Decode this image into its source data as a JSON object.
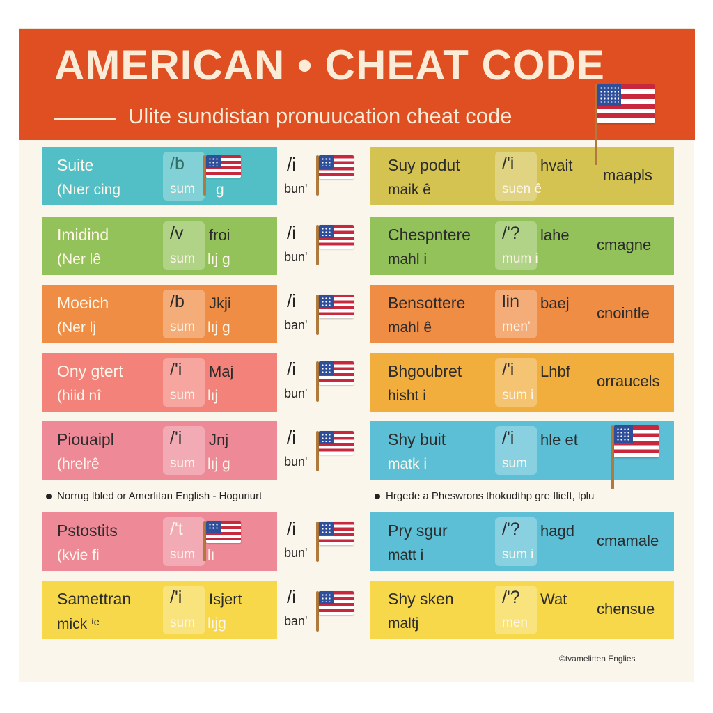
{
  "header": {
    "title": "AMERICAN • CHEAT CODE",
    "subtitle": "Ulite sundistan pronuucation cheat code"
  },
  "colors": {
    "banner": "#df4f22",
    "sheet": "#fbf6ec",
    "flag_red": "#c8283c",
    "flag_blue": "#2f4f9a"
  },
  "icons": [
    "us-flag-icon"
  ],
  "left_cards": [
    {
      "name": "Suite",
      "sub": "(Nıer cing",
      "chip_top": "/b",
      "chip_bottom": "sum",
      "word": "",
      "tail": "g",
      "color": "teal",
      "mid_ipa": "/i",
      "mid_word": "bun'"
    },
    {
      "name": "Imidind",
      "sub": "(Ner lê",
      "chip_top": "/v",
      "chip_bottom": "sum",
      "word": "froi",
      "tail": "lıj g",
      "color": "green",
      "mid_ipa": "/i",
      "mid_word": "bun'"
    },
    {
      "name": "Moeich",
      "sub": "(Ner lj",
      "chip_top": "/b",
      "chip_bottom": "sum",
      "word": "Jkji",
      "tail": "lıj g",
      "color": "orange",
      "mid_ipa": "/i",
      "mid_word": "ban'"
    },
    {
      "name": "Ony gtert",
      "sub": "(hiid nî",
      "chip_top": "/'i",
      "chip_bottom": "sum",
      "word": "Maj",
      "tail": "lıj",
      "color": "pinkor",
      "mid_ipa": "/i",
      "mid_word": "bun'"
    },
    {
      "name": "Piouaipl",
      "sub": "(hrelrê",
      "chip_top": "/'i",
      "chip_bottom": "sum",
      "word": "Jnj",
      "tail": "lıj g",
      "color": "pink",
      "mid_ipa": "/i",
      "mid_word": "bun'"
    },
    {
      "name": "Pstostits",
      "sub": "(kvie fi",
      "chip_top": "/'t",
      "chip_bottom": "sum",
      "word": "",
      "tail": "lı",
      "color": "pink",
      "mid_ipa": "/i",
      "mid_word": "bun'"
    },
    {
      "name": "Samettran",
      "sub": "mick ⁱᵉ",
      "chip_top": "/'i",
      "chip_bottom": "sum",
      "word": "Isjert",
      "tail": "lıjg",
      "color": "yellow",
      "mid_ipa": "/i",
      "mid_word": "ban'"
    }
  ],
  "right_cards": [
    {
      "name": "Suy podut",
      "sub": "maik ê",
      "chip_top": "/'i",
      "chip_bottom": "suen ê",
      "word": "hvait",
      "far": "maapls",
      "color": "olive"
    },
    {
      "name": "Chespntere",
      "sub": "mahl i",
      "chip_top": "/'?",
      "chip_bottom": "mum i",
      "word": "lahe",
      "far": "cmagne",
      "color": "green"
    },
    {
      "name": "Bensottere",
      "sub": "mahl ê",
      "chip_top": "lin",
      "chip_bottom": "men'",
      "word": "baej",
      "far": "cnointle",
      "color": "orange"
    },
    {
      "name": "Bhgoubret",
      "sub": "hisht i",
      "chip_top": "/'i",
      "chip_bottom": "sum i",
      "word": "Lhbf",
      "far": "orraucels",
      "color": "amber"
    },
    {
      "name": "Shy buit",
      "sub": "matk i",
      "chip_top": "/'i",
      "chip_bottom": "sum",
      "word": "hle et",
      "far": "",
      "color": "sky"
    },
    {
      "name": "Pry sgur",
      "sub": "matt i",
      "chip_top": "/'?",
      "chip_bottom": "sum i",
      "word": "hagd",
      "far": "cmamale",
      "color": "sky"
    },
    {
      "name": "Shy sken",
      "sub": "maltj",
      "chip_top": "/'?",
      "chip_bottom": "men",
      "word": "Wat",
      "far": "chensue",
      "color": "yellow"
    }
  ],
  "notes": {
    "left": "Norrug lbled or Amerlitan English - Hoguriurt",
    "right": "Hrgede a Pheswrons thokudthp gre Ilieft, lplu"
  },
  "credit": "©tvamelitten Englies"
}
